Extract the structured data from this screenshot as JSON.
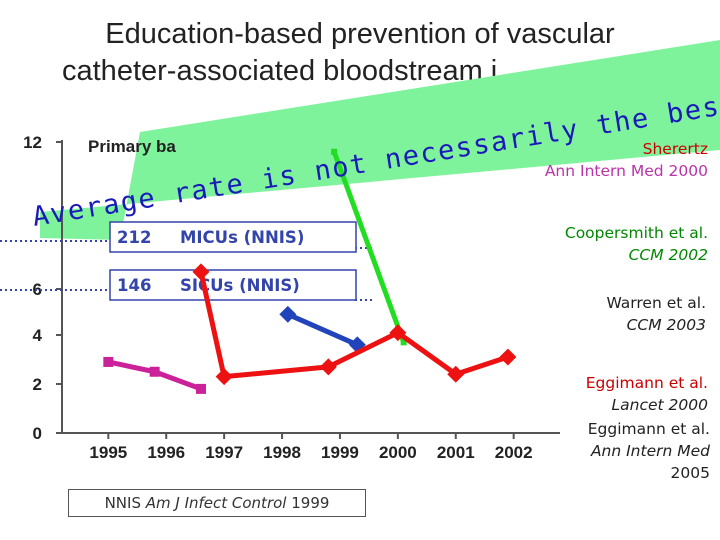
{
  "title": {
    "line1": "Education-based prevention of vascular",
    "line2": "catheter-associated bloodstream i"
  },
  "overlay": {
    "text": "Average rate is not necessarily the best you can get",
    "color": "#1a1ab8",
    "background": "#7ff39c"
  },
  "chart_data": {
    "type": "line",
    "x": [
      1995,
      1996,
      1997,
      1998,
      1999,
      2000,
      2001,
      2002
    ],
    "xticks": [
      "1995",
      "1996",
      "1997",
      "1998",
      "1999",
      "2000",
      "2001",
      "2002"
    ],
    "yticks": [
      "0",
      "2",
      "4",
      "6",
      "12"
    ],
    "ylim": [
      0,
      12
    ],
    "xlim": [
      1994.2,
      2002.8
    ],
    "grid": false,
    "series": [
      {
        "key": "sherertz",
        "color": "#22dd22",
        "points": [
          [
            1998.9,
            11.6
          ],
          [
            2000.1,
            3.7
          ]
        ]
      },
      {
        "key": "coopersmith",
        "color": "#2244bb",
        "points": [
          [
            1998.1,
            4.9
          ],
          [
            1999.3,
            3.6
          ]
        ]
      },
      {
        "key": "warren",
        "color": "#ee1111",
        "points": [
          [
            1996.6,
            6.7
          ],
          [
            1997.0,
            2.3
          ],
          [
            1998.8,
            2.7
          ],
          [
            2000.0,
            4.1
          ],
          [
            2001.0,
            2.4
          ],
          [
            2001.9,
            3.1
          ]
        ]
      },
      {
        "key": "eggimann",
        "color": "#cc2299",
        "points": [
          [
            1995.0,
            2.9
          ],
          [
            1995.8,
            2.5
          ],
          [
            1996.6,
            1.8
          ]
        ]
      }
    ],
    "annotations": [
      {
        "text": "Primary ba",
        "key": "primary"
      },
      {
        "text": "212",
        "key": "micu_value"
      },
      {
        "text": "MICUs (NNIS)",
        "key": "micu_label"
      },
      {
        "text": "146",
        "key": "sicu_value"
      },
      {
        "text": "SICUs (NNIS)",
        "key": "sicu_label"
      }
    ]
  },
  "references": [
    {
      "key": "sherertz",
      "line1": "Sherertz",
      "line2": "Ann Intern Med 2000",
      "color1": "#cc0000",
      "color2": "#bb33aa"
    },
    {
      "key": "coopersmith",
      "line1": "Coopersmith et al.",
      "line2": "CCM 2002",
      "color1": "#008800",
      "color2": "#008800"
    },
    {
      "key": "warren",
      "line1": "Warren et al.",
      "line2": "CCM 2003",
      "color1": "#222222",
      "color2": "#222222"
    },
    {
      "key": "eggimann",
      "line1": "Eggimann et al.",
      "line2": "Lancet 2000",
      "color1": "#cc0000",
      "color2": "#222222"
    },
    {
      "key": "eggimann2",
      "line1": "Eggimann et al.",
      "line2": "Ann Intern Med",
      "line3": "2005",
      "color1": "#222222",
      "color2": "#222222"
    }
  ],
  "source_box": {
    "prefix": "NNIS ",
    "journal": "Am J Infect Control",
    "year": " 1999"
  }
}
